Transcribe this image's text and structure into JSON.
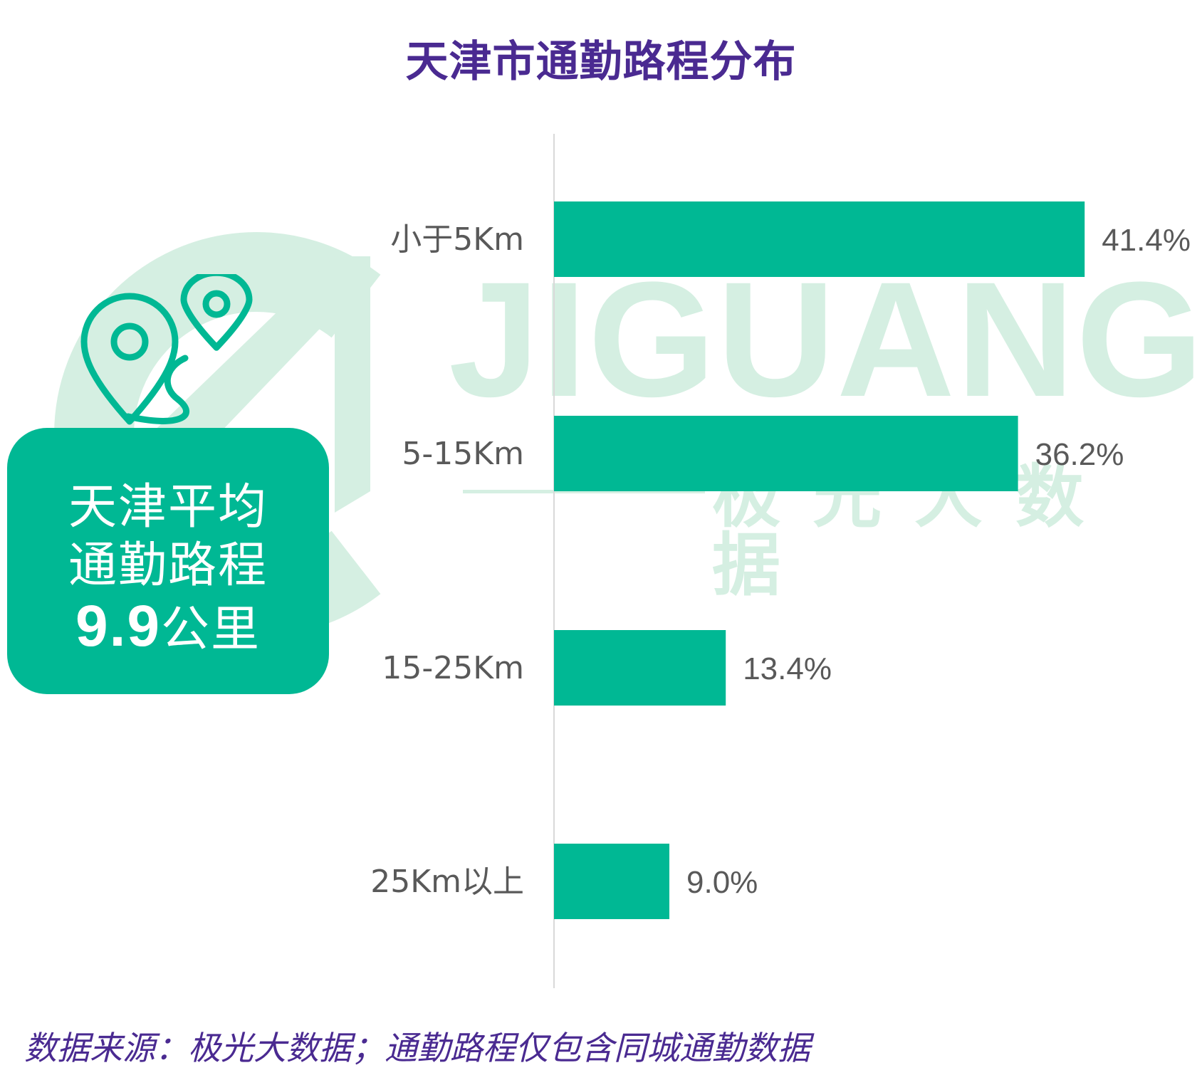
{
  "page_title": "天津市通勤路程分布",
  "watermark": {
    "brand": "JIGUANG",
    "brand_cn": "极光大数据"
  },
  "summary_card": {
    "line1": "天津平均",
    "line2": "通勤路程",
    "value": "9.9",
    "unit": "公里",
    "icon": "map-pins-route-icon"
  },
  "chart_data": {
    "type": "bar",
    "orientation": "horizontal",
    "title": "天津市通勤路程分布",
    "categories": [
      "小于5Km",
      "5-15Km",
      "15-25Km",
      "25Km以上"
    ],
    "values": [
      41.4,
      36.2,
      13.4,
      9.0
    ],
    "value_labels": [
      "41.4%",
      "36.2%",
      "13.4%",
      "9.0%"
    ],
    "unit": "%",
    "xlim": [
      0,
      50
    ],
    "grid": false,
    "legend": "none",
    "bar_color": "#00b894"
  },
  "colors": {
    "title": "#4a2a91",
    "accent": "#00b894",
    "watermark": "#d5efe2",
    "label_text": "#595959"
  },
  "source_note": "数据来源：极光大数据；通勤路程仅包含同城通勤数据"
}
